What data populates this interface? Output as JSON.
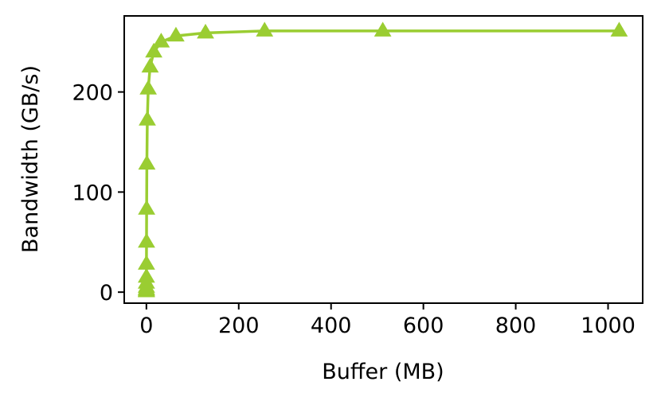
{
  "chart_data": {
    "type": "line",
    "title": "",
    "xlabel": "Buffer (MB)",
    "ylabel": "Bandwidth (GB/s)",
    "xlim": [
      -48,
      1075
    ],
    "ylim": [
      -11,
      276
    ],
    "xticks": [
      0,
      200,
      400,
      600,
      800,
      1000
    ],
    "yticks": [
      0,
      100,
      200
    ],
    "grid": false,
    "legend": "none",
    "series": [
      {
        "color": "#9acd32",
        "marker": "triangle-up",
        "x": [
          0.001,
          0.002,
          0.004,
          0.008,
          0.016,
          0.031,
          0.0625,
          0.125,
          0.25,
          0.5,
          1,
          2,
          4,
          8,
          16,
          32,
          64,
          128,
          256,
          512,
          1024
        ],
        "y": [
          0.5,
          1,
          2,
          3,
          5,
          9,
          15,
          28,
          50,
          83,
          128,
          172,
          203,
          225,
          240,
          250,
          256,
          259,
          261,
          261,
          261
        ]
      }
    ]
  }
}
